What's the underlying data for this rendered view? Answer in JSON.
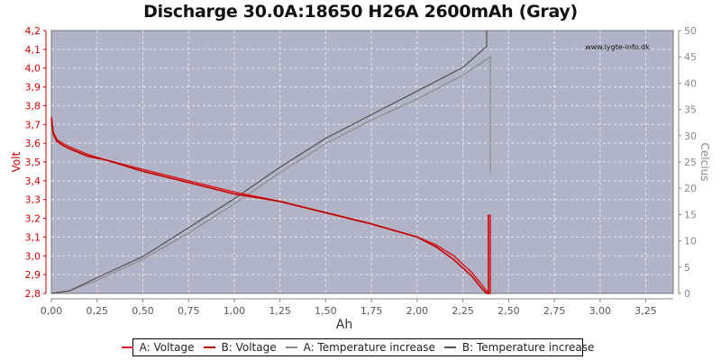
{
  "title": "Discharge 30.0A:18650 H26A 2600mAh (Gray)",
  "watermark": "www.lygte-info.dk",
  "colors": {
    "plot_bg": "#b3b3c8",
    "grid": "#e6e6ee",
    "voltage_a": "#d42020",
    "voltage_b": "#c00000",
    "temp_a": "#8a8a8a",
    "temp_b": "#505050",
    "left_axis": "#cc0000",
    "right_axis": "#888888"
  },
  "axes": {
    "x_label": "Ah",
    "y_left_label": "Volt",
    "y_right_label": "Celcius",
    "x_ticks": [
      "0,00",
      "0,25",
      "0,50",
      "0,75",
      "1,00",
      "1,25",
      "1,50",
      "1,75",
      "2,00",
      "2,25",
      "2,50",
      "2,75",
      "3,00",
      "3,25"
    ],
    "y_left_ticks": [
      "4,2",
      "4,1",
      "4,0",
      "3,9",
      "3,8",
      "3,7",
      "3,6",
      "3,5",
      "3,4",
      "3,3",
      "3,2",
      "3,1",
      "3,0",
      "2,9",
      "2,8"
    ],
    "y_right_ticks": [
      "50",
      "45",
      "40",
      "35",
      "30",
      "25",
      "20",
      "15",
      "10",
      "5",
      "0"
    ]
  },
  "legend": [
    {
      "label": "A: Voltage",
      "color": "#d42020"
    },
    {
      "label": "B: Voltage",
      "color": "#c00000"
    },
    {
      "label": "A: Temperature increase",
      "color": "#8a8a8a"
    },
    {
      "label": "B: Temperature increase",
      "color": "#505050"
    }
  ],
  "chart_data": {
    "type": "line",
    "title": "Discharge 30.0A:18650 H26A 2600mAh (Gray)",
    "xlabel": "Ah",
    "ylabel": "Volt",
    "y2label": "Celcius",
    "xlim": [
      0,
      3.4
    ],
    "ylim": [
      2.8,
      4.2
    ],
    "y2lim": [
      0,
      50
    ],
    "grid": true,
    "legend_position": "bottom",
    "series": [
      {
        "name": "A: Voltage",
        "axis": "left",
        "x": [
          0.0,
          0.01,
          0.03,
          0.06,
          0.1,
          0.2,
          0.3,
          0.5,
          0.75,
          1.0,
          1.25,
          1.5,
          1.75,
          2.0,
          2.1,
          2.2,
          2.3,
          2.35,
          2.39,
          2.4,
          2.4
        ],
        "y": [
          3.74,
          3.66,
          3.62,
          3.6,
          3.58,
          3.54,
          3.51,
          3.46,
          3.4,
          3.34,
          3.29,
          3.23,
          3.17,
          3.1,
          3.06,
          3.0,
          2.91,
          2.85,
          2.8,
          2.8,
          3.22
        ]
      },
      {
        "name": "B: Voltage",
        "axis": "left",
        "x": [
          0.0,
          0.01,
          0.03,
          0.06,
          0.1,
          0.2,
          0.3,
          0.5,
          0.75,
          1.0,
          1.25,
          1.5,
          1.75,
          2.0,
          2.1,
          2.2,
          2.3,
          2.35,
          2.38,
          2.39,
          2.39
        ],
        "y": [
          3.73,
          3.65,
          3.61,
          3.59,
          3.57,
          3.53,
          3.51,
          3.45,
          3.39,
          3.33,
          3.29,
          3.23,
          3.17,
          3.1,
          3.05,
          2.98,
          2.89,
          2.83,
          2.8,
          2.8,
          3.22
        ]
      },
      {
        "name": "A: Temperature increase",
        "axis": "right",
        "x": [
          0.0,
          0.1,
          0.25,
          0.5,
          0.75,
          1.0,
          1.25,
          1.5,
          1.75,
          2.0,
          2.25,
          2.4,
          2.4
        ],
        "y": [
          0,
          0.5,
          2.5,
          6.5,
          11.5,
          17,
          23,
          28.5,
          33,
          37,
          41.5,
          45,
          23
        ]
      },
      {
        "name": "B: Temperature increase",
        "axis": "right",
        "x": [
          0.0,
          0.1,
          0.25,
          0.5,
          0.75,
          1.0,
          1.25,
          1.5,
          1.75,
          2.0,
          2.25,
          2.38,
          2.38
        ],
        "y": [
          0,
          0.5,
          3,
          7,
          12.5,
          18,
          24,
          29.5,
          34,
          38.5,
          43,
          47,
          50
        ]
      }
    ]
  }
}
